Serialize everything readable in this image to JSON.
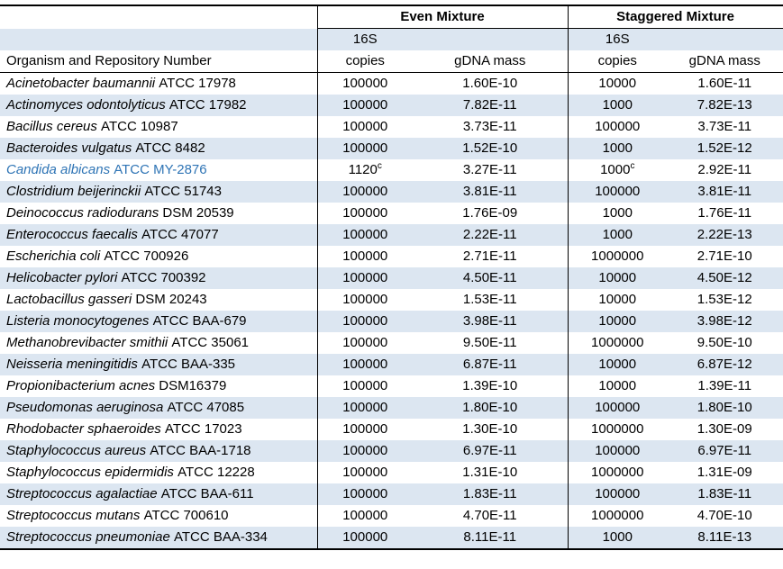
{
  "table": {
    "colors": {
      "stripe": "#DCE6F1",
      "highlight_text": "#2E74B5",
      "border": "#000000",
      "background": "#FFFFFF"
    },
    "header": {
      "organism_column": "Organism and Repository Number",
      "even_mixture": "Even Mixture",
      "staggered_mixture": "Staggered Mixture",
      "sub_16s": "16S",
      "sub_copies": "copies",
      "sub_gdna_mass": "gDNA mass"
    },
    "rows": [
      {
        "name": "Acinetobacter baumannii",
        "repo": "ATCC 17978",
        "even_copies": "100000",
        "even_copies_note": "",
        "even_gdna": "1.60E-10",
        "stag_copies": "10000",
        "stag_copies_note": "",
        "stag_gdna": "1.60E-11",
        "highlighted": false
      },
      {
        "name": "Actinomyces odontolyticus",
        "repo": "ATCC 17982",
        "even_copies": "100000",
        "even_copies_note": "",
        "even_gdna": "7.82E-11",
        "stag_copies": "1000",
        "stag_copies_note": "",
        "stag_gdna": "7.82E-13",
        "highlighted": false
      },
      {
        "name": "Bacillus cereus",
        "repo": "ATCC 10987",
        "even_copies": "100000",
        "even_copies_note": "",
        "even_gdna": "3.73E-11",
        "stag_copies": "100000",
        "stag_copies_note": "",
        "stag_gdna": "3.73E-11",
        "highlighted": false
      },
      {
        "name": "Bacteroides vulgatus",
        "repo": "ATCC 8482",
        "even_copies": "100000",
        "even_copies_note": "",
        "even_gdna": "1.52E-10",
        "stag_copies": "1000",
        "stag_copies_note": "",
        "stag_gdna": "1.52E-12",
        "highlighted": false
      },
      {
        "name": "Candida albicans",
        "repo": "ATCC MY-2876",
        "even_copies": "1120",
        "even_copies_note": "c",
        "even_gdna": "3.27E-11",
        "stag_copies": "1000",
        "stag_copies_note": "c",
        "stag_gdna": "2.92E-11",
        "highlighted": true
      },
      {
        "name": "Clostridium beijerinckii",
        "repo": "ATCC 51743",
        "even_copies": "100000",
        "even_copies_note": "",
        "even_gdna": "3.81E-11",
        "stag_copies": "100000",
        "stag_copies_note": "",
        "stag_gdna": "3.81E-11",
        "highlighted": false
      },
      {
        "name": "Deinococcus radiodurans",
        "repo": "DSM 20539",
        "even_copies": "100000",
        "even_copies_note": "",
        "even_gdna": "1.76E-09",
        "stag_copies": "1000",
        "stag_copies_note": "",
        "stag_gdna": "1.76E-11",
        "highlighted": false
      },
      {
        "name": "Enterococcus faecalis",
        "repo": "ATCC 47077",
        "even_copies": "100000",
        "even_copies_note": "",
        "even_gdna": "2.22E-11",
        "stag_copies": "1000",
        "stag_copies_note": "",
        "stag_gdna": "2.22E-13",
        "highlighted": false
      },
      {
        "name": "Escherichia coli",
        "repo": "ATCC 700926",
        "even_copies": "100000",
        "even_copies_note": "",
        "even_gdna": "2.71E-11",
        "stag_copies": "1000000",
        "stag_copies_note": "",
        "stag_gdna": "2.71E-10",
        "highlighted": false
      },
      {
        "name": "Helicobacter pylori",
        "repo": "ATCC 700392",
        "even_copies": "100000",
        "even_copies_note": "",
        "even_gdna": "4.50E-11",
        "stag_copies": "10000",
        "stag_copies_note": "",
        "stag_gdna": "4.50E-12",
        "highlighted": false
      },
      {
        "name": "Lactobacillus gasseri",
        "repo": "DSM 20243",
        "even_copies": "100000",
        "even_copies_note": "",
        "even_gdna": "1.53E-11",
        "stag_copies": "10000",
        "stag_copies_note": "",
        "stag_gdna": "1.53E-12",
        "highlighted": false
      },
      {
        "name": "Listeria monocytogenes",
        "repo": "ATCC BAA-679",
        "even_copies": "100000",
        "even_copies_note": "",
        "even_gdna": "3.98E-11",
        "stag_copies": "10000",
        "stag_copies_note": "",
        "stag_gdna": "3.98E-12",
        "highlighted": false
      },
      {
        "name": "Methanobrevibacter smithii",
        "repo": "ATCC 35061",
        "even_copies": "100000",
        "even_copies_note": "",
        "even_gdna": "9.50E-11",
        "stag_copies": "1000000",
        "stag_copies_note": "",
        "stag_gdna": "9.50E-10",
        "highlighted": false
      },
      {
        "name": "Neisseria meningitidis",
        "repo": "ATCC BAA-335",
        "even_copies": "100000",
        "even_copies_note": "",
        "even_gdna": "6.87E-11",
        "stag_copies": "10000",
        "stag_copies_note": "",
        "stag_gdna": "6.87E-12",
        "highlighted": false
      },
      {
        "name": "Propionibacterium acnes",
        "repo": "DSM16379",
        "even_copies": "100000",
        "even_copies_note": "",
        "even_gdna": "1.39E-10",
        "stag_copies": "10000",
        "stag_copies_note": "",
        "stag_gdna": "1.39E-11",
        "highlighted": false
      },
      {
        "name": "Pseudomonas aeruginosa",
        "repo": "ATCC 47085",
        "even_copies": "100000",
        "even_copies_note": "",
        "even_gdna": "1.80E-10",
        "stag_copies": "100000",
        "stag_copies_note": "",
        "stag_gdna": "1.80E-10",
        "highlighted": false
      },
      {
        "name": "Rhodobacter sphaeroides",
        "repo": "ATCC 17023",
        "even_copies": "100000",
        "even_copies_note": "",
        "even_gdna": "1.30E-10",
        "stag_copies": "1000000",
        "stag_copies_note": "",
        "stag_gdna": "1.30E-09",
        "highlighted": false
      },
      {
        "name": "Staphylococcus aureus",
        "repo": "ATCC BAA-1718",
        "even_copies": "100000",
        "even_copies_note": "",
        "even_gdna": "6.97E-11",
        "stag_copies": "100000",
        "stag_copies_note": "",
        "stag_gdna": "6.97E-11",
        "highlighted": false
      },
      {
        "name": "Staphylococcus epidermidis",
        "repo": "ATCC 12228",
        "even_copies": "100000",
        "even_copies_note": "",
        "even_gdna": "1.31E-10",
        "stag_copies": "1000000",
        "stag_copies_note": "",
        "stag_gdna": "1.31E-09",
        "highlighted": false
      },
      {
        "name": "Streptococcus agalactiae",
        "repo": "ATCC BAA-611",
        "even_copies": "100000",
        "even_copies_note": "",
        "even_gdna": "1.83E-11",
        "stag_copies": "100000",
        "stag_copies_note": "",
        "stag_gdna": "1.83E-11",
        "highlighted": false
      },
      {
        "name": "Streptococcus mutans",
        "repo": "ATCC 700610",
        "even_copies": "100000",
        "even_copies_note": "",
        "even_gdna": "4.70E-11",
        "stag_copies": "1000000",
        "stag_copies_note": "",
        "stag_gdna": "4.70E-10",
        "highlighted": false
      },
      {
        "name": "Streptococcus pneumoniae",
        "repo": "ATCC BAA-334",
        "even_copies": "100000",
        "even_copies_note": "",
        "even_gdna": "8.11E-11",
        "stag_copies": "1000",
        "stag_copies_note": "",
        "stag_gdna": "8.11E-13",
        "highlighted": false
      }
    ]
  }
}
